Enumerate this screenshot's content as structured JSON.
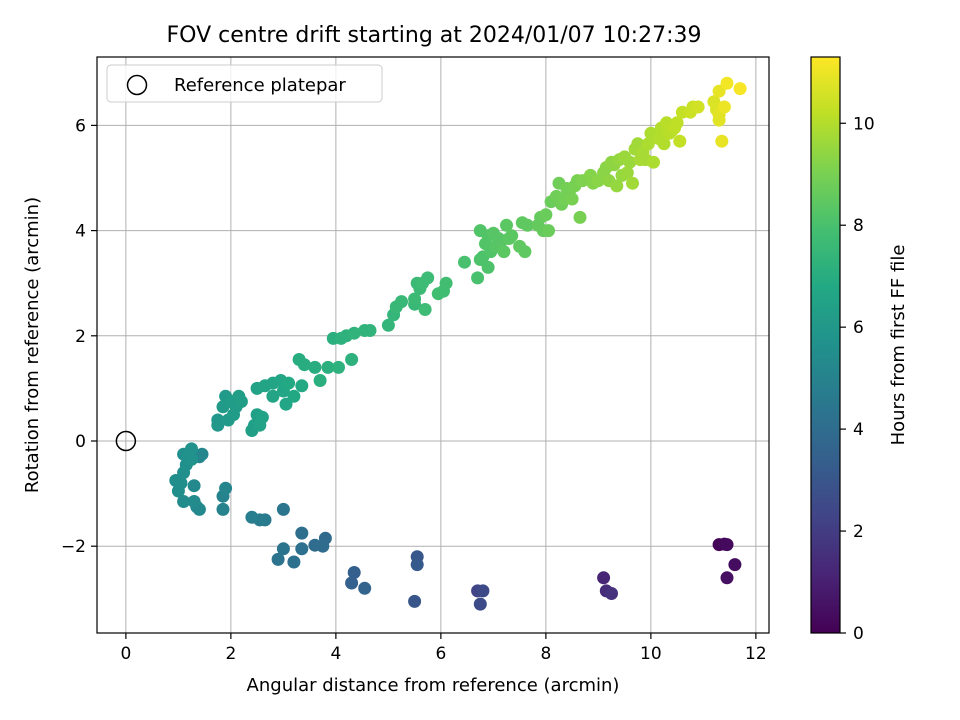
{
  "chart_data": {
    "type": "scatter",
    "title": "FOV centre drift starting at 2024/01/07 10:27:39",
    "xlabel": "Angular distance from reference (arcmin)",
    "ylabel": "Rotation from reference (arcmin)",
    "xlim": [
      -0.55,
      12.25
    ],
    "ylim": [
      -3.65,
      7.3
    ],
    "xticks": [
      0,
      2,
      4,
      6,
      8,
      10,
      12
    ],
    "yticks": [
      -2,
      0,
      2,
      4,
      6
    ],
    "grid": true,
    "legend": {
      "position": "top-left",
      "entries": [
        "Reference platepar"
      ]
    },
    "colorbar": {
      "label": "Hours from first FF file",
      "range": [
        0,
        11.3
      ],
      "ticks": [
        0,
        2,
        4,
        6,
        8,
        10
      ],
      "colormap": "viridis"
    },
    "reference_point": {
      "x": 0,
      "y": 0
    },
    "points": [
      [
        11.3,
        -1.97,
        0.1
      ],
      [
        11.4,
        -1.96,
        0.2
      ],
      [
        11.45,
        -1.97,
        0.3
      ],
      [
        11.6,
        -2.35,
        0.4
      ],
      [
        11.45,
        -2.6,
        0.5
      ],
      [
        9.1,
        -2.6,
        1.2
      ],
      [
        9.15,
        -2.85,
        1.4
      ],
      [
        9.25,
        -2.9,
        1.6
      ],
      [
        6.7,
        -2.85,
        2.3
      ],
      [
        6.8,
        -2.85,
        2.5
      ],
      [
        6.75,
        -3.1,
        2.6
      ],
      [
        5.5,
        -3.05,
        3.0
      ],
      [
        5.55,
        -2.2,
        3.1
      ],
      [
        5.55,
        -2.35,
        3.2
      ],
      [
        4.35,
        -2.5,
        3.4
      ],
      [
        4.3,
        -2.7,
        3.5
      ],
      [
        4.55,
        -2.8,
        3.6
      ],
      [
        3.8,
        -1.85,
        3.9
      ],
      [
        3.75,
        -2.0,
        4.0
      ],
      [
        3.6,
        -1.98,
        4.0
      ],
      [
        3.35,
        -1.75,
        4.1
      ],
      [
        3.35,
        -2.05,
        4.2
      ],
      [
        3.2,
        -2.3,
        4.2
      ],
      [
        3.0,
        -2.05,
        4.3
      ],
      [
        2.9,
        -2.25,
        4.3
      ],
      [
        3.0,
        -1.3,
        4.4
      ],
      [
        2.65,
        -1.5,
        4.6
      ],
      [
        2.55,
        -1.5,
        4.7
      ],
      [
        2.4,
        -1.45,
        4.8
      ],
      [
        1.85,
        -1.05,
        5.0
      ],
      [
        1.85,
        -1.3,
        5.0
      ],
      [
        1.9,
        -0.9,
        5.1
      ],
      [
        1.45,
        -0.25,
        5.2
      ],
      [
        1.4,
        -0.3,
        5.2
      ],
      [
        1.4,
        -1.3,
        5.3
      ],
      [
        1.35,
        -1.25,
        5.3
      ],
      [
        1.3,
        -0.85,
        5.3
      ],
      [
        1.3,
        -1.15,
        5.4
      ],
      [
        1.1,
        -1.15,
        5.4
      ],
      [
        1.0,
        -0.95,
        5.5
      ],
      [
        0.95,
        -0.75,
        5.5
      ],
      [
        1.05,
        -0.8,
        5.5
      ],
      [
        1.1,
        -0.6,
        5.6
      ],
      [
        1.15,
        -0.45,
        5.6
      ],
      [
        1.1,
        -0.25,
        5.6
      ],
      [
        1.2,
        -0.3,
        5.7
      ],
      [
        1.25,
        -0.15,
        5.7
      ],
      [
        1.25,
        -0.35,
        5.7
      ],
      [
        1.75,
        0.3,
        6.0
      ],
      [
        1.75,
        0.4,
        6.0
      ],
      [
        1.85,
        0.65,
        6.1
      ],
      [
        1.9,
        0.85,
        6.1
      ],
      [
        1.95,
        0.4,
        6.1
      ],
      [
        2.0,
        0.75,
        6.2
      ],
      [
        2.05,
        0.5,
        6.2
      ],
      [
        2.1,
        0.65,
        6.2
      ],
      [
        2.15,
        0.85,
        6.3
      ],
      [
        2.2,
        0.75,
        6.3
      ],
      [
        2.4,
        0.2,
        6.4
      ],
      [
        2.45,
        0.3,
        6.4
      ],
      [
        2.5,
        0.5,
        6.4
      ],
      [
        2.55,
        0.3,
        6.5
      ],
      [
        2.6,
        0.45,
        6.5
      ],
      [
        2.5,
        1.0,
        6.5
      ],
      [
        2.65,
        1.05,
        6.6
      ],
      [
        2.8,
        1.1,
        6.6
      ],
      [
        2.8,
        0.85,
        6.6
      ],
      [
        2.95,
        1.15,
        6.7
      ],
      [
        3.0,
        0.95,
        6.7
      ],
      [
        3.05,
        0.7,
        6.7
      ],
      [
        3.1,
        1.1,
        6.8
      ],
      [
        3.2,
        0.85,
        6.8
      ],
      [
        3.35,
        1.05,
        6.8
      ],
      [
        3.3,
        1.55,
        7.0
      ],
      [
        3.4,
        1.45,
        7.0
      ],
      [
        3.6,
        1.4,
        7.0
      ],
      [
        3.7,
        1.15,
        7.1
      ],
      [
        3.85,
        1.4,
        7.1
      ],
      [
        3.95,
        1.95,
        7.1
      ],
      [
        4.05,
        1.4,
        7.2
      ],
      [
        4.1,
        1.95,
        7.2
      ],
      [
        4.2,
        2.0,
        7.2
      ],
      [
        4.3,
        1.55,
        7.2
      ],
      [
        4.35,
        2.05,
        7.3
      ],
      [
        4.55,
        2.1,
        7.3
      ],
      [
        4.65,
        2.1,
        7.3
      ],
      [
        5.0,
        2.2,
        7.4
      ],
      [
        5.1,
        2.4,
        7.4
      ],
      [
        5.15,
        2.55,
        7.5
      ],
      [
        5.25,
        2.65,
        7.5
      ],
      [
        5.5,
        2.6,
        7.5
      ],
      [
        5.5,
        2.7,
        7.6
      ],
      [
        5.55,
        3.0,
        7.6
      ],
      [
        5.6,
        2.9,
        7.6
      ],
      [
        5.65,
        3.0,
        7.7
      ],
      [
        5.7,
        2.5,
        7.7
      ],
      [
        5.75,
        3.1,
        7.7
      ],
      [
        5.95,
        2.8,
        7.8
      ],
      [
        6.05,
        2.85,
        7.8
      ],
      [
        6.1,
        3.0,
        7.8
      ],
      [
        6.45,
        3.4,
        8.0
      ],
      [
        6.7,
        3.1,
        8.0
      ],
      [
        6.75,
        3.45,
        8.1
      ],
      [
        6.8,
        3.5,
        8.1
      ],
      [
        6.9,
        3.3,
        8.1
      ],
      [
        6.75,
        4.0,
        8.2
      ],
      [
        6.85,
        3.75,
        8.2
      ],
      [
        6.9,
        3.9,
        8.2
      ],
      [
        6.95,
        3.6,
        8.2
      ],
      [
        7.0,
        3.95,
        8.3
      ],
      [
        7.05,
        3.7,
        8.3
      ],
      [
        7.1,
        3.85,
        8.3
      ],
      [
        7.15,
        3.8,
        8.3
      ],
      [
        7.2,
        3.6,
        8.4
      ],
      [
        7.25,
        4.1,
        8.4
      ],
      [
        7.3,
        3.85,
        8.4
      ],
      [
        7.35,
        3.9,
        8.4
      ],
      [
        7.5,
        3.7,
        8.5
      ],
      [
        7.55,
        4.15,
        8.5
      ],
      [
        7.6,
        3.6,
        8.5
      ],
      [
        7.65,
        4.1,
        8.5
      ],
      [
        7.85,
        4.1,
        8.6
      ],
      [
        7.9,
        4.25,
        8.6
      ],
      [
        7.95,
        4.0,
        8.6
      ],
      [
        8.0,
        4.3,
        8.7
      ],
      [
        8.05,
        4.0,
        8.7
      ],
      [
        8.1,
        4.55,
        8.7
      ],
      [
        8.2,
        4.65,
        8.8
      ],
      [
        8.25,
        4.9,
        8.8
      ],
      [
        8.3,
        4.5,
        8.8
      ],
      [
        8.35,
        4.6,
        8.9
      ],
      [
        8.4,
        4.8,
        8.9
      ],
      [
        8.45,
        4.75,
        8.9
      ],
      [
        8.5,
        4.6,
        9.0
      ],
      [
        8.55,
        4.85,
        9.0
      ],
      [
        8.6,
        4.95,
        9.0
      ],
      [
        8.65,
        4.25,
        9.0
      ],
      [
        8.7,
        4.95,
        9.1
      ],
      [
        8.85,
        5.05,
        9.2
      ],
      [
        8.9,
        4.9,
        9.2
      ],
      [
        9.0,
        4.95,
        9.3
      ],
      [
        9.1,
        5.1,
        9.3
      ],
      [
        9.15,
        5.2,
        9.3
      ],
      [
        9.2,
        4.95,
        9.4
      ],
      [
        9.25,
        5.3,
        9.4
      ],
      [
        9.3,
        5.25,
        9.4
      ],
      [
        9.35,
        4.85,
        9.5
      ],
      [
        9.4,
        5.35,
        9.5
      ],
      [
        9.45,
        5.05,
        9.5
      ],
      [
        9.5,
        5.4,
        9.6
      ],
      [
        9.55,
        5.1,
        9.6
      ],
      [
        9.6,
        5.3,
        9.6
      ],
      [
        9.65,
        4.9,
        9.7
      ],
      [
        9.7,
        5.55,
        9.7
      ],
      [
        9.75,
        5.65,
        9.7
      ],
      [
        9.8,
        5.35,
        9.8
      ],
      [
        9.85,
        5.5,
        9.8
      ],
      [
        9.9,
        5.35,
        9.8
      ],
      [
        9.95,
        5.65,
        9.9
      ],
      [
        10.0,
        5.85,
        9.9
      ],
      [
        10.05,
        5.3,
        9.9
      ],
      [
        10.15,
        5.75,
        10.0
      ],
      [
        10.2,
        5.95,
        10.0
      ],
      [
        10.25,
        5.65,
        10.0
      ],
      [
        10.3,
        6.05,
        10.1
      ],
      [
        10.35,
        5.85,
        10.1
      ],
      [
        10.4,
        5.9,
        10.1
      ],
      [
        10.45,
        5.95,
        10.2
      ],
      [
        10.5,
        6.05,
        10.2
      ],
      [
        10.55,
        5.7,
        10.3
      ],
      [
        10.6,
        6.25,
        10.3
      ],
      [
        10.75,
        6.25,
        10.4
      ],
      [
        10.8,
        6.35,
        10.4
      ],
      [
        10.9,
        6.35,
        10.5
      ],
      [
        11.2,
        6.45,
        10.7
      ],
      [
        11.25,
        6.3,
        10.7
      ],
      [
        11.3,
        6.2,
        10.8
      ],
      [
        11.3,
        6.1,
        10.8
      ],
      [
        11.35,
        5.7,
        10.9
      ],
      [
        11.3,
        6.65,
        10.9
      ],
      [
        11.4,
        6.35,
        11.0
      ],
      [
        11.45,
        6.8,
        11.1
      ],
      [
        11.7,
        6.7,
        11.2
      ]
    ]
  }
}
